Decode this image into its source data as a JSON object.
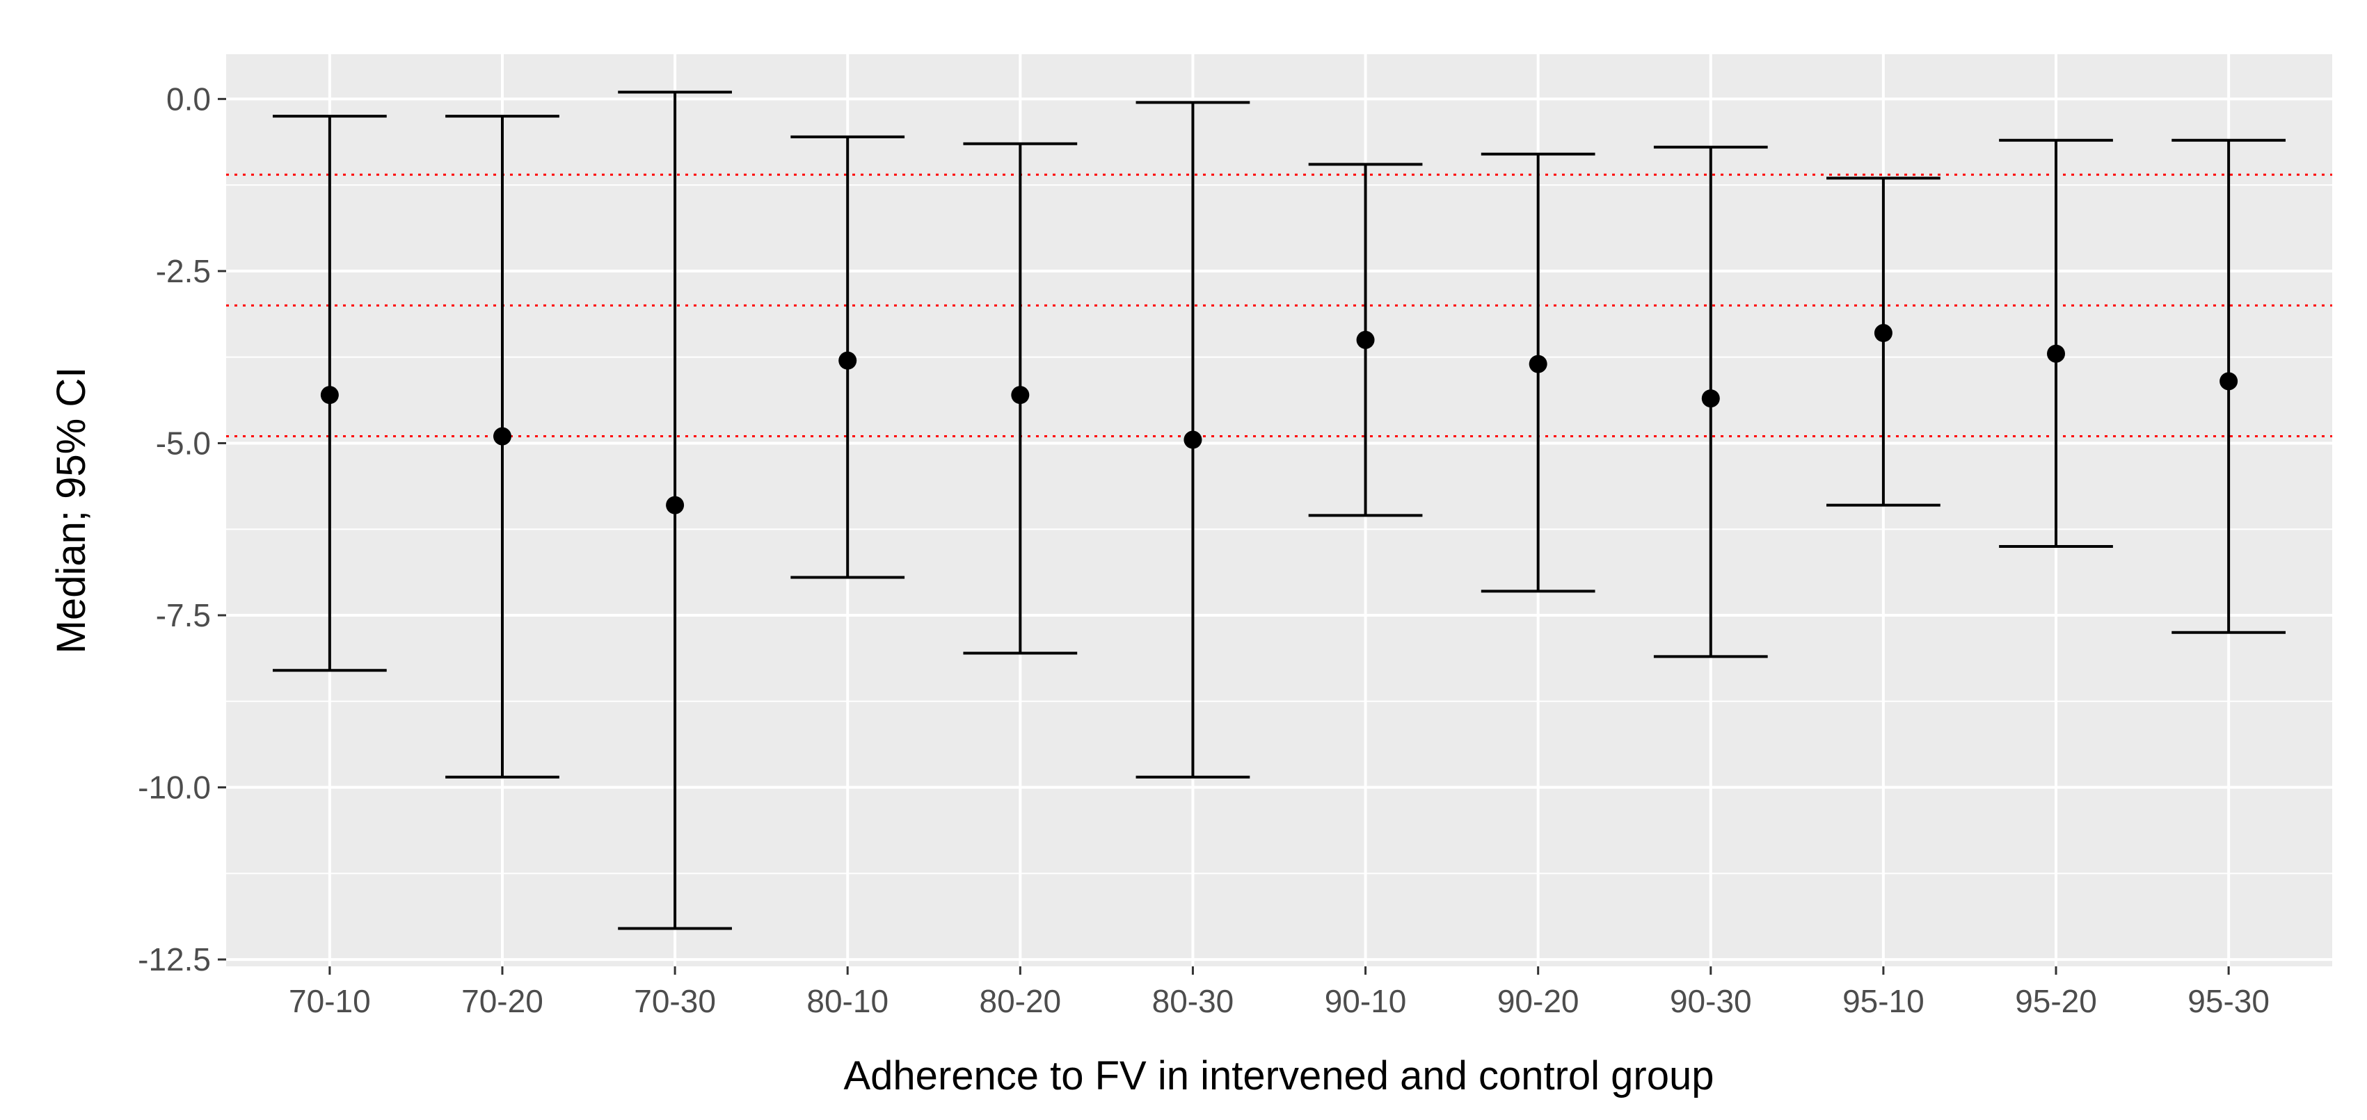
{
  "chart_data": {
    "type": "errorbar",
    "xlabel": "Adherence to FV in intervened and control group",
    "ylabel": "Median; 95% CI",
    "categories": [
      "70-10",
      "70-20",
      "70-30",
      "80-10",
      "80-20",
      "80-30",
      "90-10",
      "90-20",
      "90-30",
      "95-10",
      "95-20",
      "95-30"
    ],
    "median": [
      -4.3,
      -4.9,
      -5.9,
      -3.8,
      -4.3,
      -4.95,
      -3.5,
      -3.85,
      -4.35,
      -3.4,
      -3.7,
      -4.1
    ],
    "ci_lower": [
      -8.3,
      -9.85,
      -12.05,
      -6.95,
      -8.05,
      -9.85,
      -6.05,
      -7.15,
      -8.1,
      -5.9,
      -6.5,
      -7.75
    ],
    "ci_upper": [
      -0.25,
      -0.25,
      0.1,
      -0.55,
      -0.65,
      -0.05,
      -0.95,
      -0.8,
      -0.7,
      -1.15,
      -0.6,
      -0.6
    ],
    "reference_lines": [
      -1.1,
      -3.0,
      -4.9
    ],
    "reference_line_color": "#ff0000",
    "yticks": [
      0.0,
      -2.5,
      -5.0,
      -7.5,
      -10.0,
      -12.5
    ],
    "ytick_labels": [
      "0.0",
      "-2.5",
      "-5.0",
      "-7.5",
      "-10.0",
      "-12.5"
    ],
    "ylim": [
      -12.6,
      0.65
    ],
    "grid": true,
    "panel_color": "#ebebeb",
    "grid_color": "#ffffff",
    "point_color": "#000000"
  }
}
